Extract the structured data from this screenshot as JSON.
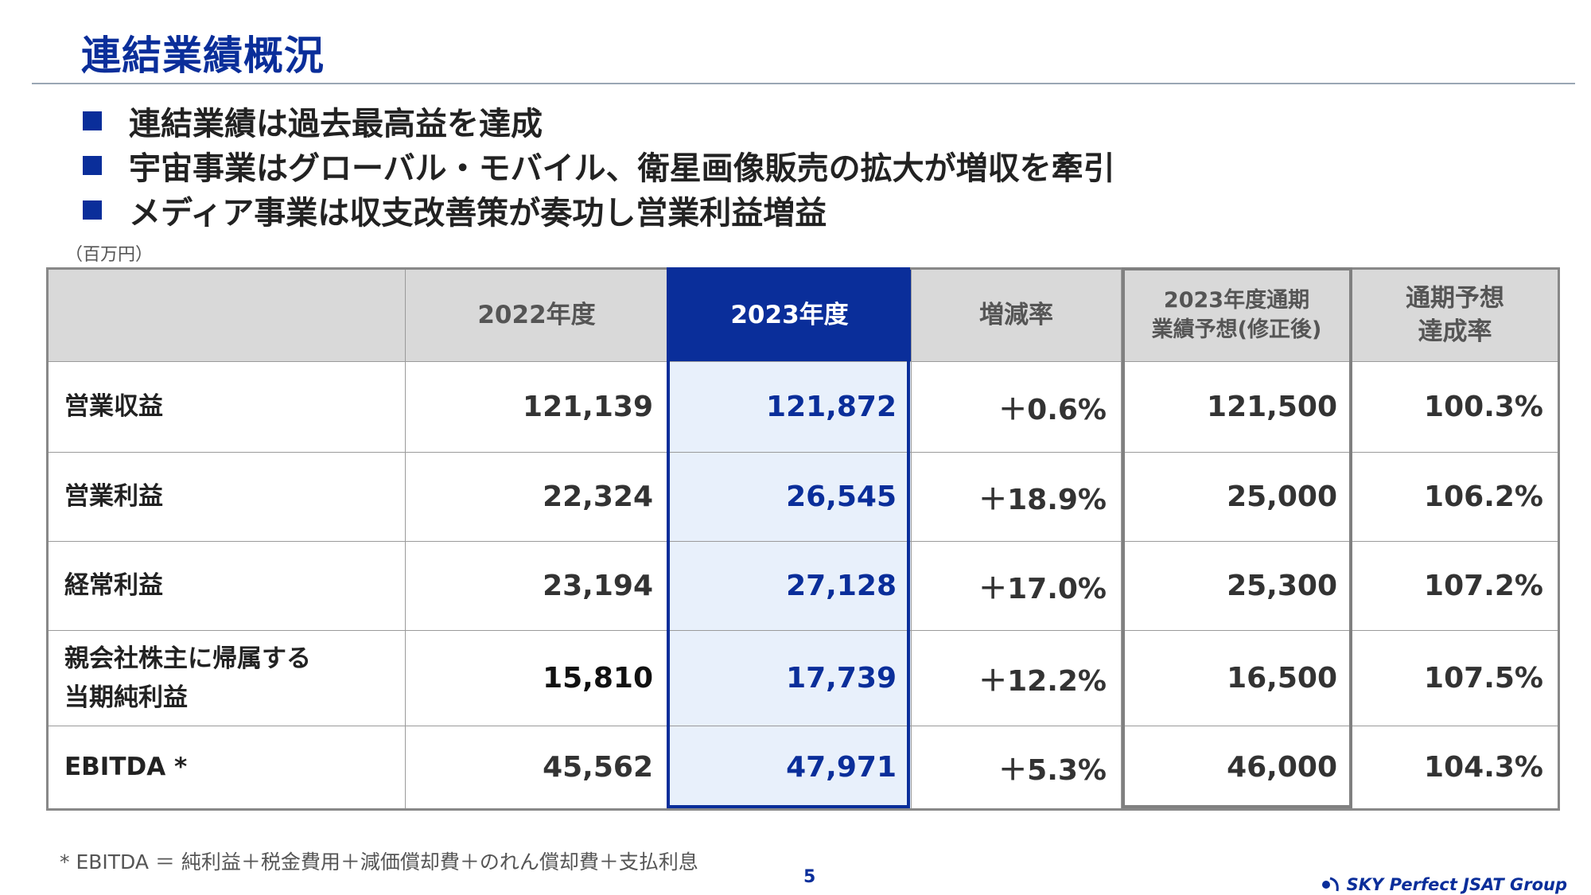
{
  "page": {
    "title": "連結業績概況",
    "bullets": [
      "連結業績は過去最高益を達成",
      "宇宙事業はグローバル・モバイル、衛星画像販売の拡大が増収を牽引",
      "メディア事業は収支改善策が奏功し営業利益増益"
    ],
    "unit": "（百万円）",
    "footnote": "* EBITDA ＝ 純利益＋税金費用＋減価償却費＋のれん償却費＋支払利息",
    "page_number": "5",
    "logo_text": "SKY Perfect JSAT Group",
    "accent_color": "#0a2e9a"
  },
  "table": {
    "headers": {
      "label": "",
      "fy2022": "2022年度",
      "fy2023": "2023年度",
      "change": "増減率",
      "forecast_line1": "2023年度通期",
      "forecast_line2": "業績予想(修正後)",
      "achievement_line1": "通期予想",
      "achievement_line2": "達成率"
    },
    "rows": [
      {
        "label_line1": "営業収益",
        "label_line2": "",
        "fy2022": "121,139",
        "fy2023": "121,872",
        "change": "＋0.6%",
        "forecast": "121,500",
        "achievement": "100.3%"
      },
      {
        "label_line1": "営業利益",
        "label_line2": "",
        "fy2022": "22,324",
        "fy2023": "26,545",
        "change": "＋18.9%",
        "forecast": "25,000",
        "achievement": "106.2%"
      },
      {
        "label_line1": "経常利益",
        "label_line2": "",
        "fy2022": "23,194",
        "fy2023": "27,128",
        "change": "＋17.0%",
        "forecast": "25,300",
        "achievement": "107.2%"
      },
      {
        "label_line1": "親会社株主に帰属する",
        "label_line2": "当期純利益",
        "fy2022": "15,810",
        "fy2023": "17,739",
        "change": "＋12.2%",
        "forecast": "16,500",
        "achievement": "107.5%"
      },
      {
        "label_line1": "EBITDA *",
        "label_line2": "",
        "fy2022": "45,562",
        "fy2023": "47,971",
        "change": "＋5.3%",
        "forecast": "46,000",
        "achievement": "104.3%"
      }
    ]
  }
}
